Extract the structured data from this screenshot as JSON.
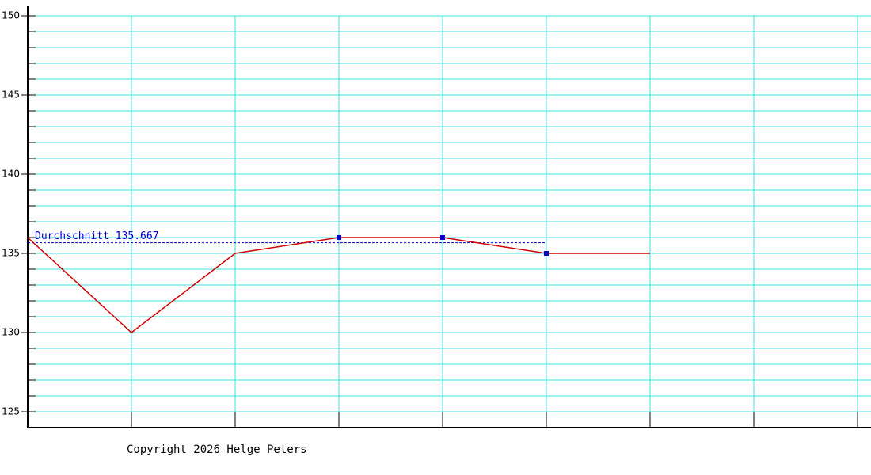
{
  "chart_data": {
    "type": "line",
    "x": [
      0,
      1,
      2,
      3,
      4,
      5,
      6
    ],
    "xlim": [
      0,
      8
    ],
    "xticks": [
      0,
      1,
      2,
      3,
      4,
      5,
      6,
      7,
      8
    ],
    "ylim": [
      124,
      150
    ],
    "yticks": [
      125,
      130,
      135,
      140,
      145,
      150
    ],
    "ygrid": [
      125,
      126,
      127,
      128,
      129,
      130,
      131,
      132,
      133,
      134,
      135,
      136,
      137,
      138,
      139,
      140,
      141,
      142,
      143,
      144,
      145,
      146,
      147,
      148,
      149,
      150
    ],
    "grid": true,
    "grid_color": "#40e0e0",
    "series": [
      {
        "color": "#d00000",
        "marker_color": "#0000cc",
        "values": [
          136,
          130,
          135,
          136,
          136,
          135,
          135
        ],
        "marked": [
          false,
          false,
          false,
          true,
          true,
          true,
          false
        ]
      }
    ],
    "average": {
      "label": "Durchschnitt 135.667",
      "value": 135.667,
      "color": "#0000cc"
    },
    "footer": "Copyright 2026 Helge Peters"
  }
}
